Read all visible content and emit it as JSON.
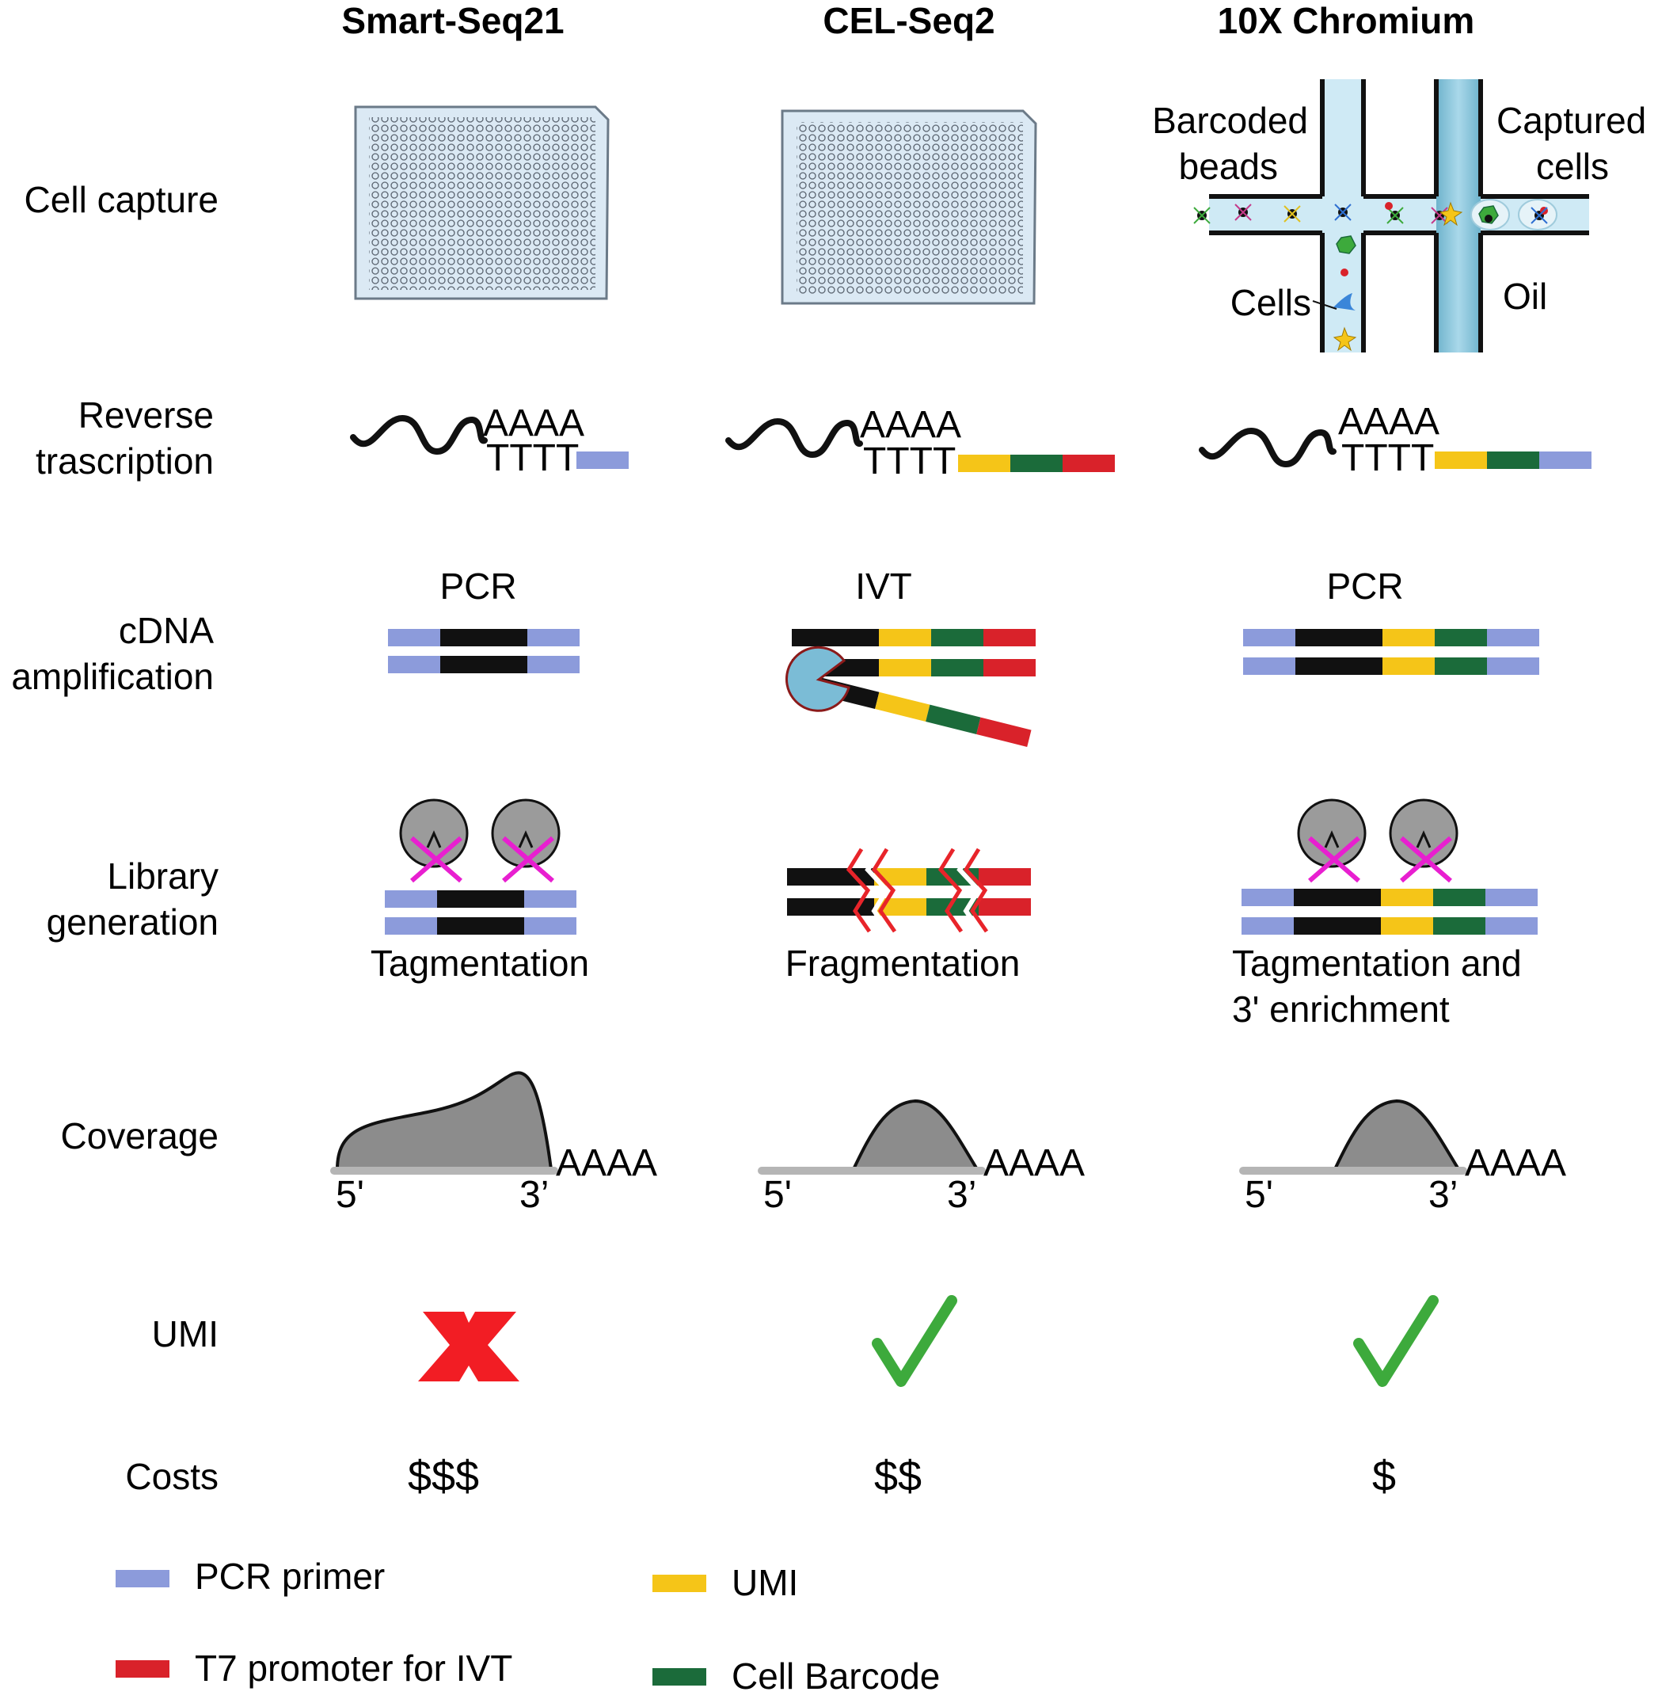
{
  "columns": [
    {
      "title": "Smart-Seq21"
    },
    {
      "title": "CEL-Seq2"
    },
    {
      "title": "10X Chromium"
    }
  ],
  "rows": {
    "cell_capture": {
      "line1": "Cell capture"
    },
    "reverse_transcription": {
      "line1": "Reverse",
      "line2": "trascription"
    },
    "cdna_amplification": {
      "line1": "cDNA",
      "line2": "amplification"
    },
    "library_generation": {
      "line1": "Library",
      "line2": "generation"
    },
    "coverage": {
      "line1": "Coverage"
    },
    "umi": {
      "line1": "UMI"
    },
    "costs": {
      "line1": "Costs"
    }
  },
  "microfluidics": {
    "barcoded_beads_line1": "Barcoded",
    "barcoded_beads_line2": "beads",
    "captured_cells_line1": "Captured",
    "captured_cells_line2": "cells",
    "cells": "Cells",
    "oil": "Oil"
  },
  "rt": {
    "polyA": "AAAA",
    "polyT": "TTTT"
  },
  "amplification": {
    "smartseq": "PCR",
    "celseq": "IVT",
    "tenx": "PCR"
  },
  "library": {
    "smartseq": "Tagmentation",
    "celseq": "Fragmentation",
    "tenx_line1": "Tagmentation and",
    "tenx_line2": "3' enrichment"
  },
  "coverage": {
    "five_prime": "5'",
    "three_prime": "3’",
    "polyA": "AAAA"
  },
  "umi": {
    "smartseq": "no",
    "celseq": "yes",
    "tenx": "yes"
  },
  "costs": {
    "smartseq": "$$$",
    "celseq": "$$",
    "tenx": "$"
  },
  "legend": [
    {
      "label": "PCR primer",
      "color": "#8c9bdb"
    },
    {
      "label": "UMI",
      "color": "#f5c518"
    },
    {
      "label": "T7 promoter for IVT",
      "color": "#d9222a"
    },
    {
      "label": "Cell Barcode",
      "color": "#1b6b3a"
    }
  ],
  "colors": {
    "pcr_primer": "#8c9bdb",
    "umi": "#f5c518",
    "t7": "#d9222a",
    "barcode": "#1b6b3a",
    "cross": "#e8242a",
    "check": "#3daa3c",
    "transposase_x": "#e81fd0",
    "plate_fill": "#dbe9f4",
    "channel": "#b9dfee"
  }
}
